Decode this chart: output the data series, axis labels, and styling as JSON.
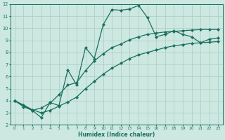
{
  "xlabel": "Humidex (Indice chaleur)",
  "background_color": "#cce8e0",
  "grid_color": "#aaccbf",
  "line_color": "#1a7060",
  "xlim": [
    -0.5,
    23.5
  ],
  "ylim": [
    2,
    12
  ],
  "xticks": [
    0,
    1,
    2,
    3,
    4,
    5,
    6,
    7,
    8,
    9,
    10,
    11,
    12,
    13,
    14,
    15,
    16,
    17,
    18,
    19,
    20,
    21,
    22,
    23
  ],
  "yticks": [
    2,
    3,
    4,
    5,
    6,
    7,
    8,
    9,
    10,
    11,
    12
  ],
  "line1_x": [
    0,
    1,
    2,
    3,
    4,
    5,
    6,
    7,
    8,
    9,
    10,
    11,
    12,
    13,
    14,
    15,
    16,
    17,
    18,
    19,
    20,
    21,
    22,
    23
  ],
  "line1_y": [
    4.0,
    3.5,
    3.2,
    2.6,
    3.85,
    3.6,
    6.55,
    5.3,
    8.4,
    7.5,
    10.3,
    11.55,
    11.5,
    11.6,
    11.9,
    10.9,
    9.3,
    9.5,
    9.8,
    9.5,
    9.3,
    8.8,
    9.1,
    9.2
  ],
  "line2_x": [
    0,
    2,
    3,
    4,
    5,
    6,
    7,
    8,
    9,
    10,
    11,
    12,
    13,
    14,
    15,
    16,
    17,
    18,
    19,
    20,
    21,
    22,
    23
  ],
  "line2_y": [
    4.0,
    3.2,
    3.4,
    3.8,
    4.5,
    5.3,
    5.5,
    6.5,
    7.3,
    7.9,
    8.4,
    8.7,
    9.05,
    9.3,
    9.5,
    9.6,
    9.7,
    9.75,
    9.8,
    9.85,
    9.9,
    9.9,
    9.9
  ],
  "line3_x": [
    0,
    1,
    2,
    3,
    4,
    5,
    6,
    7,
    8,
    9,
    10,
    11,
    12,
    13,
    14,
    15,
    16,
    17,
    18,
    19,
    20,
    21,
    22,
    23
  ],
  "line3_y": [
    4.0,
    3.65,
    3.25,
    3.0,
    3.2,
    3.55,
    3.9,
    4.3,
    5.0,
    5.6,
    6.2,
    6.7,
    7.1,
    7.5,
    7.8,
    8.0,
    8.2,
    8.4,
    8.55,
    8.65,
    8.75,
    8.8,
    8.85,
    8.9
  ]
}
